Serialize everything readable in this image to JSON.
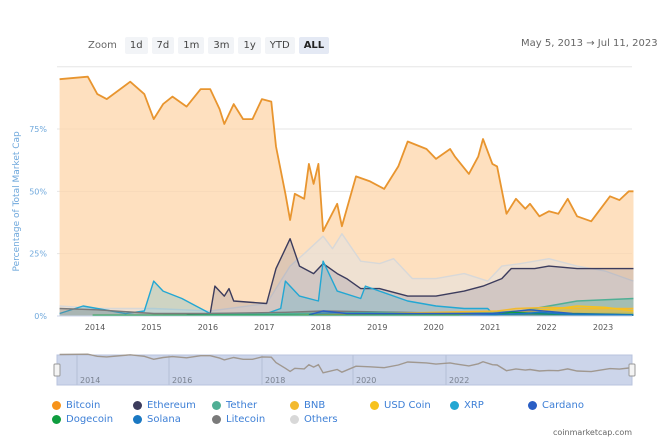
{
  "toolbar": {
    "zoom_label": "Zoom",
    "buttons": [
      "1d",
      "7d",
      "1m",
      "3m",
      "1y",
      "YTD",
      "ALL"
    ],
    "active": "ALL",
    "date_from": "May 5, 2013",
    "arrow": "→",
    "date_to": "Jul 11, 2023"
  },
  "credit": "coinmarketcap.com",
  "chart_data": {
    "type": "area",
    "ylabel": "Percentage of Total Market Cap",
    "ylim": [
      0,
      100
    ],
    "yticks": [
      "0%",
      "25%",
      "50%",
      "75%"
    ],
    "xticks": [
      "2014",
      "2015",
      "2016",
      "2017",
      "2018",
      "2019",
      "2020",
      "2021",
      "2022",
      "2023"
    ],
    "navigator_ticks": [
      "2014",
      "2016",
      "2018",
      "2020",
      "2022"
    ],
    "grid": true,
    "legend_position": "bottom",
    "series": [
      {
        "name": "Bitcoin",
        "color": "#f7931a",
        "data": [
          [
            "2013-05",
            95
          ],
          [
            "2013-11",
            96
          ],
          [
            "2014-01",
            89
          ],
          [
            "2014-03",
            87
          ],
          [
            "2014-08",
            94
          ],
          [
            "2014-11",
            89
          ],
          [
            "2015-01",
            79
          ],
          [
            "2015-03",
            85
          ],
          [
            "2015-05",
            88
          ],
          [
            "2015-08",
            84
          ],
          [
            "2015-11",
            91
          ],
          [
            "2016-01",
            91
          ],
          [
            "2016-03",
            83
          ],
          [
            "2016-04",
            77
          ],
          [
            "2016-06",
            85
          ],
          [
            "2016-08",
            79
          ],
          [
            "2016-10",
            79
          ],
          [
            "2016-12",
            87
          ],
          [
            "2017-02",
            86
          ],
          [
            "2017-03",
            68
          ],
          [
            "2017-05",
            49
          ],
          [
            "2017-06",
            38.5
          ],
          [
            "2017-07",
            49
          ],
          [
            "2017-09",
            47
          ],
          [
            "2017-10",
            61
          ],
          [
            "2017-11",
            53
          ],
          [
            "2017-12",
            61
          ],
          [
            "2018-01",
            34
          ],
          [
            "2018-04",
            45
          ],
          [
            "2018-05",
            36
          ],
          [
            "2018-08",
            56
          ],
          [
            "2018-11",
            54
          ],
          [
            "2019-02",
            51
          ],
          [
            "2019-05",
            60
          ],
          [
            "2019-07",
            70
          ],
          [
            "2019-11",
            67
          ],
          [
            "2020-01",
            63
          ],
          [
            "2020-04",
            67
          ],
          [
            "2020-05",
            64
          ],
          [
            "2020-08",
            57
          ],
          [
            "2020-10",
            64
          ],
          [
            "2020-11",
            71
          ],
          [
            "2021-01",
            61
          ],
          [
            "2021-02",
            60
          ],
          [
            "2021-04",
            41
          ],
          [
            "2021-06",
            47
          ],
          [
            "2021-08",
            43
          ],
          [
            "2021-09",
            45
          ],
          [
            "2021-11",
            40
          ],
          [
            "2022-01",
            42
          ],
          [
            "2022-03",
            41
          ],
          [
            "2022-05",
            47
          ],
          [
            "2022-07",
            40
          ],
          [
            "2022-10",
            38
          ],
          [
            "2023-02",
            48
          ],
          [
            "2023-04",
            46.5
          ],
          [
            "2023-06",
            50
          ],
          [
            "2023-07",
            50
          ]
        ]
      },
      {
        "name": "Ethereum",
        "color": "#3c3c5d",
        "data": [
          [
            "2015-08",
            0.5
          ],
          [
            "2016-01",
            1
          ],
          [
            "2016-02",
            12
          ],
          [
            "2016-04",
            8
          ],
          [
            "2016-05",
            11
          ],
          [
            "2016-06",
            6
          ],
          [
            "2017-01",
            5
          ],
          [
            "2017-03",
            19
          ],
          [
            "2017-06",
            31
          ],
          [
            "2017-08",
            20
          ],
          [
            "2017-11",
            17
          ],
          [
            "2018-01",
            21
          ],
          [
            "2018-04",
            17
          ],
          [
            "2018-06",
            15
          ],
          [
            "2018-09",
            11
          ],
          [
            "2019-01",
            11
          ],
          [
            "2019-07",
            8
          ],
          [
            "2020-01",
            8
          ],
          [
            "2020-07",
            10
          ],
          [
            "2020-11",
            12
          ],
          [
            "2021-03",
            15
          ],
          [
            "2021-05",
            19
          ],
          [
            "2021-10",
            19
          ],
          [
            "2022-01",
            20
          ],
          [
            "2022-07",
            19
          ],
          [
            "2023-01",
            19
          ],
          [
            "2023-07",
            19
          ]
        ]
      },
      {
        "name": "Tether",
        "color": "#50af95",
        "data": [
          [
            "2015-03",
            0.2
          ],
          [
            "2019-01",
            1.5
          ],
          [
            "2020-01",
            1
          ],
          [
            "2021-01",
            1.5
          ],
          [
            "2021-07",
            2
          ],
          [
            "2022-07",
            6
          ],
          [
            "2023-07",
            7
          ]
        ]
      },
      {
        "name": "BNB",
        "color": "#f3ba2f",
        "data": [
          [
            "2017-08",
            0.3
          ],
          [
            "2019-01",
            1
          ],
          [
            "2021-02",
            2
          ],
          [
            "2021-06",
            3
          ],
          [
            "2022-01",
            3.5
          ],
          [
            "2022-07",
            3
          ],
          [
            "2023-07",
            3
          ]
        ]
      },
      {
        "name": "USD Coin",
        "color": "#f7c21e",
        "data": [
          [
            "2018-10",
            0.1
          ],
          [
            "2021-01",
            0.5
          ],
          [
            "2021-09",
            2
          ],
          [
            "2022-03",
            3
          ],
          [
            "2022-07",
            4
          ],
          [
            "2023-01",
            3.5
          ],
          [
            "2023-07",
            2
          ]
        ]
      },
      {
        "name": "XRP",
        "color": "#23a7d3",
        "data": [
          [
            "2013-05",
            1
          ],
          [
            "2013-10",
            4
          ],
          [
            "2014-07",
            1
          ],
          [
            "2014-11",
            2
          ],
          [
            "2015-01",
            14
          ],
          [
            "2015-03",
            10
          ],
          [
            "2015-07",
            7
          ],
          [
            "2015-10",
            4
          ],
          [
            "2016-01",
            1
          ],
          [
            "2017-01",
            1
          ],
          [
            "2017-04",
            3
          ],
          [
            "2017-05",
            14
          ],
          [
            "2017-08",
            8
          ],
          [
            "2017-12",
            6
          ],
          [
            "2018-01",
            22
          ],
          [
            "2018-04",
            10
          ],
          [
            "2018-09",
            7
          ],
          [
            "2018-10",
            12
          ],
          [
            "2019-01",
            10
          ],
          [
            "2019-07",
            6
          ],
          [
            "2020-01",
            4
          ],
          [
            "2020-07",
            3
          ],
          [
            "2020-12",
            3
          ],
          [
            "2021-01",
            1
          ],
          [
            "2022-01",
            1
          ],
          [
            "2023-07",
            1
          ]
        ]
      },
      {
        "name": "Cardano",
        "color": "#2a5ec4",
        "data": [
          [
            "2017-10",
            0.5
          ],
          [
            "2018-01",
            2
          ],
          [
            "2018-06",
            1
          ],
          [
            "2021-01",
            1
          ],
          [
            "2021-09",
            2.5
          ],
          [
            "2022-06",
            1
          ],
          [
            "2023-07",
            0.5
          ]
        ]
      },
      {
        "name": "Dogecoin",
        "color": "#0f9d3f",
        "data": [
          [
            "2013-12",
            0.3
          ],
          [
            "2021-01",
            0.3
          ],
          [
            "2021-05",
            1.5
          ],
          [
            "2022-01",
            0.8
          ],
          [
            "2023-07",
            0.5
          ]
        ]
      },
      {
        "name": "Solana",
        "color": "#1a78c2",
        "data": [
          [
            "2020-06",
            0.1
          ],
          [
            "2021-08",
            1
          ],
          [
            "2021-11",
            1.5
          ],
          [
            "2022-06",
            0.6
          ],
          [
            "2023-07",
            0.5
          ]
        ]
      },
      {
        "name": "Litecoin",
        "color": "#7a7a7a",
        "data": [
          [
            "2013-05",
            3
          ],
          [
            "2014-01",
            2.5
          ],
          [
            "2015-01",
            1
          ],
          [
            "2016-01",
            1
          ],
          [
            "2017-05",
            1.5
          ],
          [
            "2018-01",
            2
          ],
          [
            "2019-06",
            1.5
          ],
          [
            "2020-06",
            1
          ],
          [
            "2022-01",
            0.5
          ],
          [
            "2023-07",
            0.5
          ]
        ]
      },
      {
        "name": "Others",
        "color": "#d8d8d8",
        "data": [
          [
            "2013-05",
            4
          ],
          [
            "2014-01",
            3
          ],
          [
            "2015-01",
            3
          ],
          [
            "2016-01",
            2
          ],
          [
            "2017-01",
            5
          ],
          [
            "2017-06",
            20
          ],
          [
            "2017-09",
            25
          ],
          [
            "2018-01",
            32
          ],
          [
            "2018-03",
            27
          ],
          [
            "2018-05",
            33
          ],
          [
            "2018-09",
            22
          ],
          [
            "2019-01",
            21
          ],
          [
            "2019-04",
            23
          ],
          [
            "2019-08",
            15
          ],
          [
            "2020-01",
            15
          ],
          [
            "2020-07",
            17
          ],
          [
            "2020-12",
            14
          ],
          [
            "2021-03",
            20
          ],
          [
            "2021-07",
            21
          ],
          [
            "2022-01",
            23
          ],
          [
            "2022-07",
            20
          ],
          [
            "2023-01",
            18
          ],
          [
            "2023-07",
            14
          ]
        ]
      }
    ]
  }
}
